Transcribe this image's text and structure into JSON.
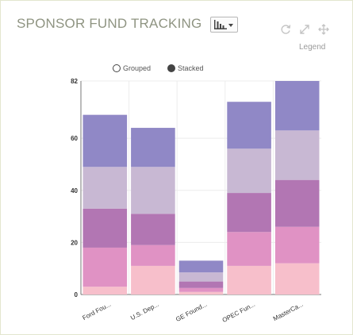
{
  "header": {
    "title": "SPONSOR FUND TRACKING",
    "legend_label": "Legend",
    "icons": [
      "bar-chart-icon",
      "refresh-icon",
      "expand-icon",
      "move-icon"
    ]
  },
  "mode_options": [
    {
      "label": "Grouped",
      "selected": false
    },
    {
      "label": "Stacked",
      "selected": true
    }
  ],
  "chart_data": {
    "type": "bar",
    "stacked": true,
    "categories": [
      "Ford Fou...",
      "U.S. Dep...",
      "GE Found...",
      "OPEC Fun...",
      "MasterCa..."
    ],
    "series": [
      {
        "values": [
          3,
          11,
          1,
          11,
          12
        ],
        "color": "#f7bfcb"
      },
      {
        "values": [
          15,
          8,
          1.5,
          13,
          14
        ],
        "color": "#e092c4"
      },
      {
        "values": [
          15,
          12,
          2.5,
          15,
          18
        ],
        "color": "#b276b3"
      },
      {
        "values": [
          16,
          18,
          3.5,
          17,
          19
        ],
        "color": "#c8b8d3"
      },
      {
        "values": [
          20,
          15,
          4.5,
          18,
          19
        ],
        "color": "#9088c6"
      }
    ],
    "y_ticks": [
      "0",
      "20",
      "40",
      "60",
      "82"
    ],
    "ylim": [
      0,
      82
    ],
    "grid": true,
    "legend": "top-center"
  }
}
